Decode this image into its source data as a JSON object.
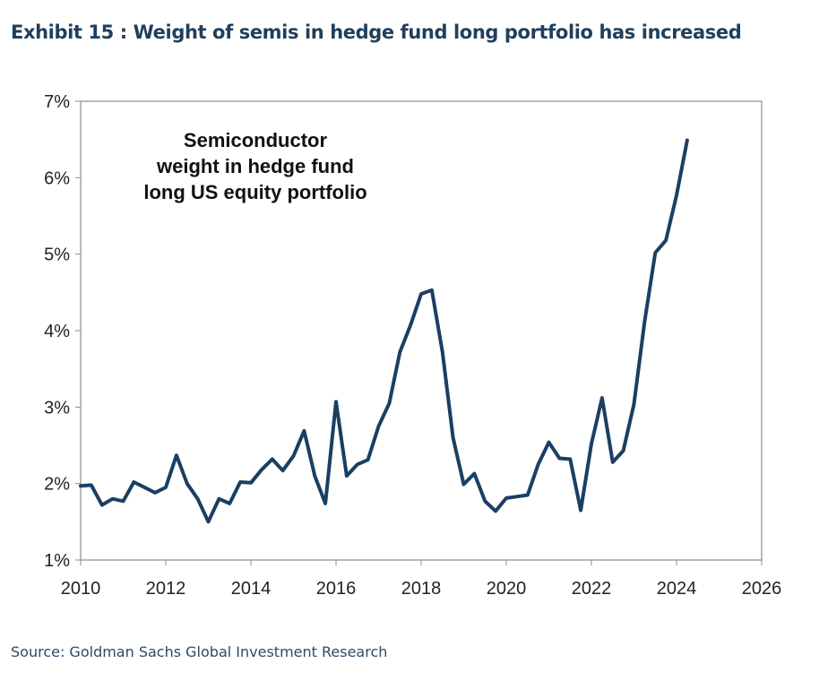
{
  "header": {
    "title": "Exhibit 15 : Weight of semis in hedge fund long portfolio has increased"
  },
  "footer": {
    "source": "Source: Goldman Sachs Global Investment Research"
  },
  "colors": {
    "line": "#1a3f63",
    "axis": "#8c8c8c",
    "title": "#1f3f5c"
  },
  "chart_data": {
    "type": "line",
    "title": "",
    "xlabel": "",
    "ylabel": "",
    "xlim": [
      2010,
      2026
    ],
    "ylim": [
      1,
      7
    ],
    "grid": false,
    "legend": "none",
    "x_ticks": [
      2010,
      2012,
      2014,
      2016,
      2018,
      2020,
      2022,
      2024,
      2026
    ],
    "x_tick_labels": [
      "2010",
      "2012",
      "2014",
      "2016",
      "2018",
      "2020",
      "2022",
      "2024",
      "2026"
    ],
    "y_ticks": [
      1,
      2,
      3,
      4,
      5,
      6,
      7
    ],
    "y_tick_labels": [
      "1%",
      "2%",
      "3%",
      "4%",
      "5%",
      "6%",
      "7%"
    ],
    "annotation": [
      "Semiconductor",
      "weight in hedge fund",
      "long US equity portfolio"
    ],
    "series": [
      {
        "x": [
          2010.0,
          2010.25,
          2010.5,
          2010.75,
          2011.0,
          2011.25,
          2011.5,
          2011.75,
          2012.0,
          2012.25,
          2012.5,
          2012.75,
          2013.0,
          2013.25,
          2013.5,
          2013.75,
          2014.0,
          2014.25,
          2014.5,
          2014.75,
          2015.0,
          2015.25,
          2015.5,
          2015.75,
          2016.0,
          2016.25,
          2016.5,
          2016.75,
          2017.0,
          2017.25,
          2017.5,
          2017.75,
          2018.0,
          2018.25,
          2018.5,
          2018.75,
          2019.0,
          2019.25,
          2019.5,
          2019.75,
          2020.0,
          2020.25,
          2020.5,
          2020.75,
          2021.0,
          2021.25,
          2021.5,
          2021.75,
          2022.0,
          2022.25,
          2022.5,
          2022.75,
          2023.0,
          2023.25,
          2023.5,
          2023.75,
          2024.0,
          2024.25
        ],
        "y": [
          1.97,
          1.98,
          1.72,
          1.8,
          1.77,
          2.02,
          1.95,
          1.88,
          1.95,
          2.37,
          2.0,
          1.8,
          1.5,
          1.8,
          1.74,
          2.02,
          2.01,
          2.18,
          2.32,
          2.17,
          2.36,
          2.69,
          2.1,
          1.74,
          3.07,
          2.1,
          2.25,
          2.31,
          2.75,
          3.05,
          3.72,
          4.07,
          4.48,
          4.53,
          3.72,
          2.6,
          1.99,
          2.13,
          1.77,
          1.64,
          1.81,
          1.83,
          1.85,
          2.25,
          2.54,
          2.33,
          2.32,
          1.65,
          2.52,
          3.12,
          2.28,
          2.43,
          3.04,
          4.12,
          5.02,
          5.18,
          5.77,
          6.49
        ]
      }
    ]
  }
}
